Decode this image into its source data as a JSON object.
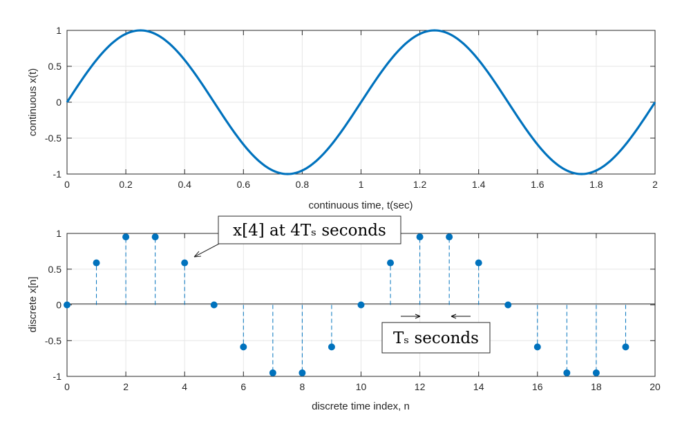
{
  "colors": {
    "series": "#0072BD",
    "grid": "#e6e6e6",
    "axis": "#262626"
  },
  "chart_data": [
    {
      "type": "line",
      "xlabel": "continuous time, t(sec)",
      "ylabel": "continuous x(t)",
      "xlim": [
        0,
        2
      ],
      "ylim": [
        -1,
        1
      ],
      "xticks": [
        "0",
        "0.2",
        "0.4",
        "0.6",
        "0.8",
        "1",
        "1.2",
        "1.4",
        "1.6",
        "1.8",
        "2"
      ],
      "yticks": [
        "-1",
        "-0.5",
        "0",
        "0.5",
        "1"
      ],
      "grid": true,
      "series": [
        {
          "function": "sin(2*pi*t)",
          "frequency_hz": 1,
          "amplitude": 1,
          "t_range": [
            0,
            2
          ]
        }
      ]
    },
    {
      "type": "stem",
      "xlabel": "discrete time index, n",
      "ylabel": "discrete x[n]",
      "xlim": [
        0,
        20
      ],
      "ylim": [
        -1,
        1
      ],
      "xticks": [
        "0",
        "2",
        "4",
        "6",
        "8",
        "10",
        "12",
        "14",
        "16",
        "18",
        "20"
      ],
      "yticks": [
        "-1",
        "-0.5",
        "0",
        "0.5",
        "1"
      ],
      "grid": true,
      "x": [
        0,
        1,
        2,
        3,
        4,
        5,
        6,
        7,
        8,
        9,
        10,
        11,
        12,
        13,
        14,
        15,
        16,
        17,
        18,
        19
      ],
      "values": [
        0,
        0.588,
        0.951,
        0.951,
        0.588,
        0,
        -0.588,
        -0.951,
        -0.951,
        -0.588,
        0,
        0.588,
        0.951,
        0.951,
        0.588,
        0,
        -0.588,
        -0.951,
        -0.951,
        -0.588
      ],
      "annotations": [
        {
          "text": "x[4]  at  4Tₛ  seconds",
          "points_to": [
            4,
            0.588
          ]
        },
        {
          "text": "Tₛ  seconds",
          "interval": [
            12,
            13
          ]
        }
      ]
    }
  ]
}
